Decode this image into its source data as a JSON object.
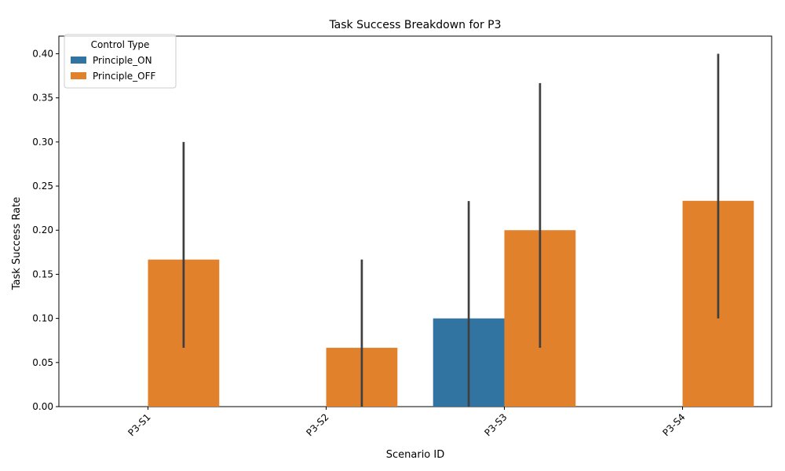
{
  "chart_data": {
    "type": "bar",
    "title": "Task Success Breakdown for P3",
    "xlabel": "Scenario ID",
    "ylabel": "Task Success Rate",
    "categories": [
      "P3-S1",
      "P3-S2",
      "P3-S3",
      "P3-S4"
    ],
    "ylim": [
      0,
      0.42
    ],
    "yticks": [
      "0.00",
      "0.05",
      "0.10",
      "0.15",
      "0.20",
      "0.25",
      "0.30",
      "0.35",
      "0.40"
    ],
    "grid": false,
    "legend": {
      "title": "Control Type",
      "position": "top-left"
    },
    "series": [
      {
        "name": "Principle_ON",
        "color": "#3274a1",
        "values": [
          0,
          0,
          0.1,
          0
        ],
        "error_low": [
          null,
          null,
          0.0,
          null
        ],
        "error_high": [
          null,
          null,
          0.233,
          null
        ]
      },
      {
        "name": "Principle_OFF",
        "color": "#e1812c",
        "values": [
          0.1667,
          0.0667,
          0.2,
          0.2333
        ],
        "error_low": [
          0.0667,
          0.0,
          0.0667,
          0.1
        ],
        "error_high": [
          0.3,
          0.1667,
          0.3667,
          0.4
        ]
      }
    ],
    "errorbar_color": "#3f3f3f"
  }
}
